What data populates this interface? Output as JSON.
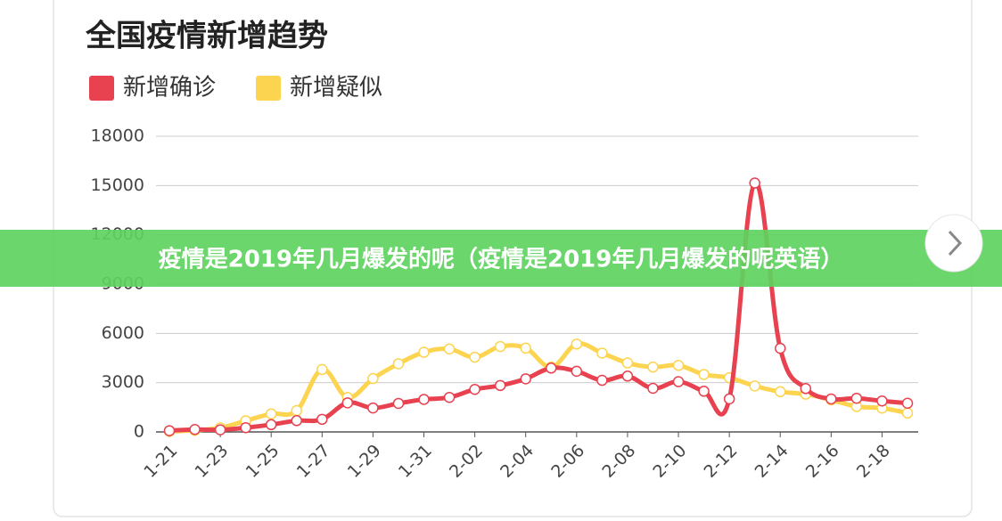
{
  "chart_data": {
    "type": "line",
    "title": "全国疫情新增趋势",
    "categories": [
      "1-21",
      null,
      "1-23",
      null,
      "1-25",
      null,
      "1-27",
      null,
      "1-29",
      null,
      "1-31",
      null,
      "2-02",
      null,
      "2-04",
      null,
      "2-06",
      null,
      "2-08",
      null,
      "2-10",
      null,
      "2-12",
      null,
      "2-14",
      null,
      "2-16",
      null,
      "2-18",
      null
    ],
    "series": [
      {
        "name": "新增确诊",
        "color": "#e8414f",
        "values": [
          77,
          149,
          131,
          259,
          444,
          688,
          769,
          1771,
          1459,
          1737,
          1982,
          2102,
          2590,
          2829,
          3235,
          3887,
          3694,
          3143,
          3399,
          2656,
          3062,
          2478,
          2015,
          15152,
          5090,
          2641,
          2009,
          2048,
          1886,
          1749
        ]
      },
      {
        "name": "新增疑似",
        "color": "#fcd450",
        "values": [
          27,
          100,
          250,
          680,
          1100,
          1300,
          3800,
          2100,
          3250,
          4150,
          4850,
          5050,
          4550,
          5200,
          5100,
          3950,
          5350,
          4800,
          4200,
          3950,
          4050,
          3500,
          3300,
          2800,
          2450,
          2300,
          1950,
          1550,
          1450,
          1150
        ]
      }
    ],
    "ylim": [
      0,
      18000
    ],
    "yticks": [
      0,
      3000,
      6000,
      9000,
      12000,
      15000,
      18000
    ],
    "grid": true
  },
  "banner": "疫情是2019年几月爆发的呢（疫情是2019年几月爆发的呢英语）"
}
